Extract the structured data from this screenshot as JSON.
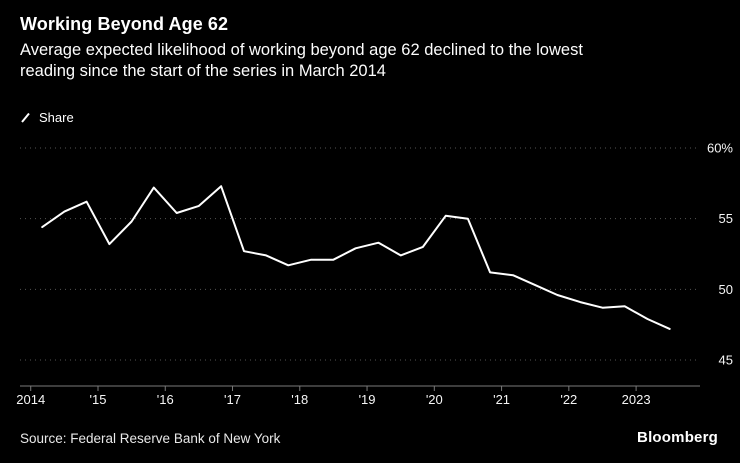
{
  "header": {
    "title": "Working Beyond Age 62",
    "subtitle_line1": "Average expected likelihood of working beyond age 62 declined to the lowest",
    "subtitle_line2": "reading since the start of the series in March 2014"
  },
  "legend": {
    "label": "Share"
  },
  "footer": {
    "source": "Source: Federal Reserve Bank of New York",
    "brand": "Bloomberg"
  },
  "chart_data": {
    "type": "line",
    "title": "Working Beyond Age 62",
    "series_name": "Share",
    "x": [
      2014.17,
      2014.5,
      2014.83,
      2015.17,
      2015.5,
      2015.83,
      2016.17,
      2016.5,
      2016.83,
      2017.17,
      2017.5,
      2017.83,
      2018.17,
      2018.5,
      2018.83,
      2019.17,
      2019.5,
      2019.83,
      2020.17,
      2020.5,
      2020.83,
      2021.17,
      2021.5,
      2021.83,
      2022.17,
      2022.5,
      2022.83,
      2023.17,
      2023.5
    ],
    "values": [
      54.4,
      55.5,
      56.2,
      53.2,
      54.8,
      57.2,
      55.4,
      55.9,
      57.3,
      52.7,
      52.4,
      51.7,
      52.1,
      52.1,
      52.9,
      53.3,
      52.4,
      53.0,
      55.2,
      55.0,
      51.2,
      51.0,
      50.3,
      49.6,
      49.1,
      48.7,
      48.8,
      47.9,
      47.2
    ],
    "ylim": [
      45,
      60
    ],
    "xlim": [
      2013.9,
      2023.95
    ],
    "yticks": [
      60,
      55,
      50,
      45
    ],
    "ytick_labels": [
      "60%",
      "55",
      "50",
      "45"
    ],
    "xtick_years": [
      2014,
      2015,
      2016,
      2017,
      2018,
      2019,
      2020,
      2021,
      2022,
      2023
    ],
    "xtick_labels": [
      "2014",
      "'15",
      "'16",
      "'17",
      "'18",
      "'19",
      "'20",
      "'21",
      "'22",
      "2023"
    ],
    "grid": "horizontal-dotted",
    "legend_position": "top-left",
    "line_color": "#ffffff",
    "grid_color": "#555555",
    "axis_color": "#7a7a7a",
    "background": "#000000"
  }
}
